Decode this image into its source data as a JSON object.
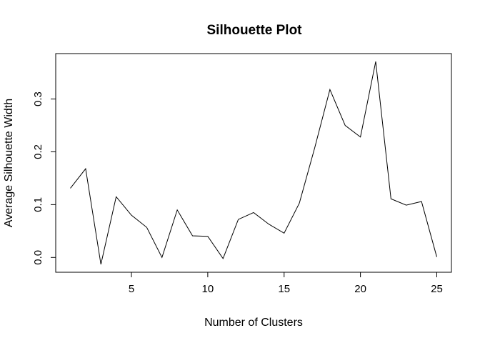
{
  "chart_data": {
    "type": "line",
    "title": "Silhouette Plot",
    "xlabel": "Number of Clusters",
    "ylabel": "Average Silhouette Width",
    "x": [
      1,
      2,
      3,
      4,
      5,
      6,
      7,
      8,
      9,
      10,
      11,
      12,
      13,
      14,
      15,
      16,
      17,
      18,
      19,
      20,
      21,
      22,
      23,
      24,
      25
    ],
    "series": [
      {
        "values": [
          0.131,
          0.168,
          -0.013,
          0.115,
          0.08,
          0.057,
          0.0,
          0.09,
          0.041,
          0.04,
          -0.002,
          0.072,
          0.085,
          0.063,
          0.046,
          0.103,
          0.207,
          0.318,
          0.25,
          0.228,
          0.371,
          0.111,
          0.099,
          0.106,
          0.001
        ]
      }
    ],
    "xticks": [
      5,
      10,
      15,
      20,
      25
    ],
    "xtick_labels": [
      "5",
      "10",
      "15",
      "20",
      "25"
    ],
    "yticks": [
      0.0,
      0.1,
      0.2,
      0.3
    ],
    "ytick_labels": [
      "0.0",
      "0.1",
      "0.2",
      "0.3"
    ],
    "xlim": [
      0.04,
      25.96
    ],
    "ylim": [
      -0.028,
      0.386
    ],
    "grid": false,
    "legend": "none",
    "line_color": "#000000"
  }
}
